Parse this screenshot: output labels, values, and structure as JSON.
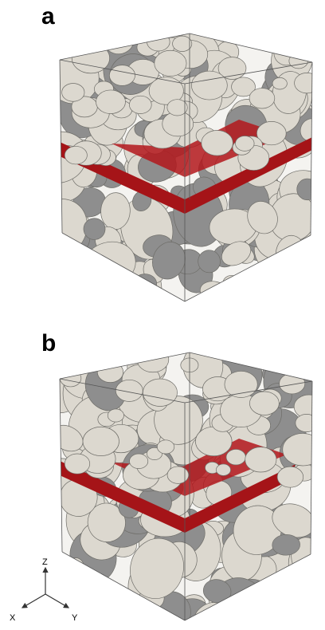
{
  "panels": [
    {
      "label": "a"
    },
    {
      "label": "b"
    }
  ],
  "axes_triad": {
    "z": "Z",
    "x": "X",
    "y": "Y"
  }
}
